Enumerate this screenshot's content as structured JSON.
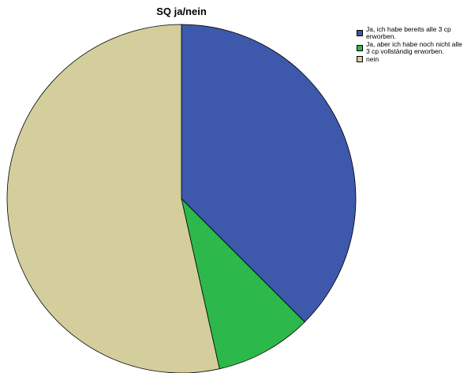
{
  "chart_data": {
    "type": "pie",
    "title": "SQ ja/nein",
    "categories": [
      "Ja, ich habe bereits alle 3 cp erworben.",
      "Ja, aber ich habe noch nicht alle 3 cp vollständig erworben.",
      "nein"
    ],
    "values": [
      37.5,
      9.0,
      53.5
    ],
    "colors": [
      "#3e58ac",
      "#2db84b",
      "#d3ce9c"
    ],
    "legend_position": "top-right",
    "start_angle": "12 o'clock",
    "direction": "clockwise"
  }
}
